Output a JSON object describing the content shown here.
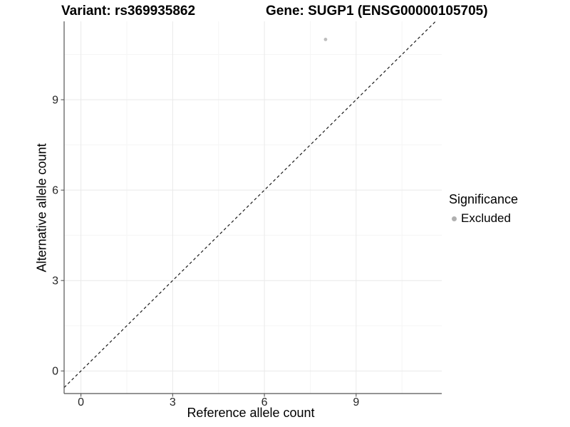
{
  "titles": {
    "variant": "Variant: rs369935862",
    "gene": "Gene: SUGP1 (ENSG00000105705)"
  },
  "chart_data": {
    "type": "scatter",
    "title_left": "Variant: rs369935862",
    "title_right": "Gene: SUGP1 (ENSG00000105705)",
    "xlabel": "Reference allele count",
    "ylabel": "Alternative allele count",
    "points": [
      {
        "x": 8,
        "y": 11,
        "significance": "Excluded"
      }
    ],
    "x_ticks": [
      0,
      3,
      6,
      9
    ],
    "y_ticks": [
      0,
      3,
      6,
      9
    ],
    "x_minor": [
      1.5,
      4.5,
      7.5,
      10.5
    ],
    "y_minor": [
      1.5,
      4.5,
      7.5,
      10.5
    ],
    "xlim": [
      -0.55,
      11.8
    ],
    "ylim": [
      -0.75,
      11.6
    ],
    "grid": true,
    "identity_line": {
      "slope": 1,
      "intercept": 0,
      "style": "dashed"
    },
    "legend": {
      "position": "right",
      "title": "Significance",
      "items": [
        {
          "label": "Excluded",
          "color": "#b0b0b0"
        }
      ]
    },
    "colors": {
      "excluded_point": "#bdbdbd",
      "grid_major": "#e9e9e9",
      "grid_minor": "#f5f5f5",
      "axis_line": "#555555",
      "dashed_line": "#1a1a1a",
      "background": "#ffffff"
    }
  }
}
